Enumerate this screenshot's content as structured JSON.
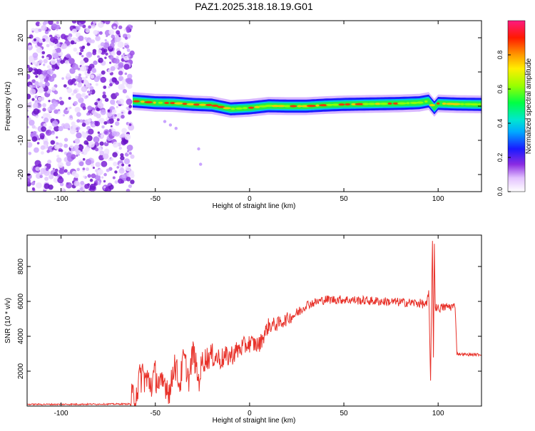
{
  "title": "PAZ1.2025.318.18.19.G01",
  "colors": {
    "line": "#e8322a",
    "frame": "#000000"
  },
  "chart_data": [
    {
      "type": "heatmap",
      "name": "spectrogram",
      "xlabel": "Height of straight line (km)",
      "ylabel": "Frequency (Hz)",
      "xlim": [
        -118,
        123
      ],
      "ylim": [
        -25,
        25
      ],
      "xticks": [
        -100,
        -50,
        0,
        50,
        100
      ],
      "yticks": [
        -20,
        -10,
        0,
        10,
        20
      ],
      "noise_region_x": [
        -118,
        -62
      ],
      "ridge": {
        "x": [
          -62,
          -50,
          -40,
          -30,
          -20,
          -10,
          0,
          10,
          20,
          30,
          40,
          50,
          60,
          70,
          80,
          90,
          95,
          98,
          100,
          110,
          123
        ],
        "freq": [
          1.5,
          1.0,
          0.9,
          0.5,
          0.3,
          -0.8,
          -0.5,
          0.1,
          0.0,
          0.0,
          0.3,
          0.5,
          0.6,
          0.7,
          0.8,
          1.0,
          1.5,
          -0.5,
          0.8,
          0.6,
          0.5
        ]
      },
      "scatter_trail": {
        "x": [
          -45,
          -42,
          -39,
          -27,
          -26
        ],
        "freq": [
          -4.5,
          -5.5,
          -6.5,
          -12.5,
          -17
        ]
      },
      "colorbar": {
        "label": "Normalized spectral amplitude",
        "ticks": [
          "0.0",
          "0.2",
          "0.4",
          "0.6",
          "0.8"
        ],
        "tick_values": [
          0.0,
          0.2,
          0.4,
          0.6,
          0.8
        ],
        "range": [
          0,
          1
        ]
      }
    },
    {
      "type": "line",
      "name": "snr",
      "xlabel": "Height of straight line (km)",
      "ylabel": "SNR (10 * v/v)",
      "xlim": [
        -118,
        123
      ],
      "ylim": [
        0,
        9800
      ],
      "xticks": [
        -100,
        -50,
        0,
        50,
        100
      ],
      "yticks": [
        2000,
        4000,
        6000,
        8000
      ],
      "series": [
        {
          "name": "SNR",
          "x": [
            -118,
            -100,
            -80,
            -63,
            -60,
            -57,
            -55,
            -52,
            -50,
            -47,
            -45,
            -42,
            -40,
            -37,
            -35,
            -32,
            -30,
            -27,
            -25,
            -20,
            -15,
            -10,
            -5,
            0,
            5,
            10,
            15,
            20,
            25,
            30,
            35,
            40,
            50,
            60,
            70,
            80,
            90,
            94,
            95,
            96,
            97,
            97.5,
            98,
            98.5,
            99,
            100,
            105,
            109,
            110,
            115,
            123
          ],
          "y": [
            100,
            100,
            110,
            120,
            900,
            1900,
            1500,
            1300,
            1800,
            1000,
            1400,
            800,
            2600,
            1200,
            2800,
            1500,
            3200,
            1400,
            2600,
            2900,
            2700,
            2900,
            3300,
            3600,
            3500,
            4600,
            4700,
            5000,
            5300,
            5800,
            5950,
            6100,
            6100,
            6050,
            6000,
            5950,
            5900,
            5800,
            6500,
            1600,
            9500,
            3000,
            9300,
            5600,
            5700,
            5600,
            5700,
            5700,
            3000,
            2950,
            2950
          ]
        }
      ]
    }
  ]
}
